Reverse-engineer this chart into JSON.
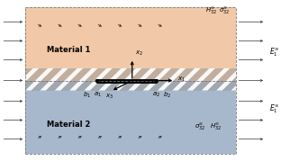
{
  "fig_width": 3.12,
  "fig_height": 1.79,
  "dpi": 100,
  "material1_color": "#f2c9a8",
  "material2_color": "#a8b8cc",
  "crack_gray_color": "#999999",
  "border_color": "#777777",
  "arrow_color": "#333333",
  "mat1_label": "Material 1",
  "mat2_label": "Material 2",
  "label_fontsize": 6.0,
  "annotation_fontsize": 5.0,
  "sigma_top_label": "$H_{32}^{\\infty}$",
  "H_top_label": "$\\sigma_{32}^{\\infty}$",
  "sigma_bot_label": "$\\sigma_{32}^{\\infty}$",
  "H_bot_label": "$H_{32}^{\\infty}$",
  "E1_top_label": "$E_1^{\\infty}$",
  "E1_bot_label": "$E_1^{\\infty}$",
  "x1_label": "$x_1$",
  "x2_label": "$x_2$",
  "x3_label": "$x_3$",
  "a1_label": "$a_1$",
  "a2_label": "$a_2$",
  "b1_label": "$b_1$",
  "b2_label": "$b_2$"
}
